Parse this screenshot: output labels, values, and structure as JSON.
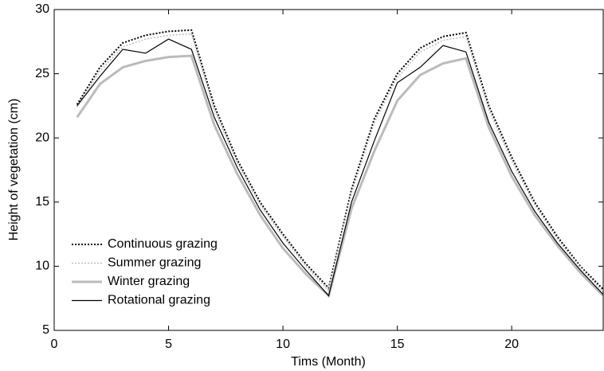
{
  "chart_data": {
    "type": "line",
    "xlabel": "Tims (Month)",
    "ylabel": "Height of vegetation (cm)",
    "x": [
      1,
      2,
      3,
      4,
      5,
      6,
      7,
      8,
      9,
      10,
      11,
      12,
      13,
      14,
      15,
      16,
      17,
      18,
      19,
      20,
      21,
      22,
      23,
      24
    ],
    "series": [
      {
        "name": "Continuous grazing",
        "color": "#000000",
        "style": "dotted",
        "linewidth": 2,
        "values": [
          22.6,
          25.5,
          27.4,
          28.0,
          28.3,
          28.4,
          22.5,
          18.3,
          15.0,
          12.5,
          10.2,
          8.3,
          16.0,
          21.5,
          25.0,
          27.0,
          27.9,
          28.2,
          22.5,
          18.5,
          15.0,
          12.3,
          10.0,
          8.2
        ]
      },
      {
        "name": "Summer grazing",
        "color": "#bbbbbb",
        "style": "dotted",
        "linewidth": 1.5,
        "values": [
          22.4,
          25.2,
          27.1,
          27.7,
          28.0,
          28.1,
          22.2,
          18.1,
          14.8,
          12.3,
          10.0,
          8.1,
          15.7,
          21.2,
          24.7,
          26.7,
          27.6,
          27.9,
          22.2,
          18.2,
          14.8,
          12.1,
          9.9,
          8.0
        ]
      },
      {
        "name": "Winter grazing",
        "color": "#bbbbbb",
        "style": "solid",
        "linewidth": 3,
        "values": [
          21.6,
          24.2,
          25.5,
          26.0,
          26.3,
          26.4,
          21.0,
          17.2,
          14.0,
          11.4,
          9.4,
          7.7,
          14.5,
          19.0,
          22.9,
          24.9,
          25.8,
          26.2,
          20.8,
          17.0,
          14.0,
          11.6,
          9.5,
          7.7
        ]
      },
      {
        "name": "Rotational grazing",
        "color": "#000000",
        "style": "solid",
        "linewidth": 1.2,
        "values": [
          22.5,
          24.8,
          26.9,
          26.6,
          27.7,
          26.9,
          21.6,
          17.7,
          14.4,
          11.8,
          9.7,
          7.7,
          15.0,
          19.8,
          24.3,
          25.5,
          27.2,
          26.7,
          21.2,
          17.4,
          14.3,
          11.8,
          9.7,
          7.8
        ]
      }
    ],
    "xlim": [
      0,
      24
    ],
    "xticks": [
      0,
      5,
      10,
      15,
      20
    ],
    "ylim": [
      5,
      30
    ],
    "yticks": [
      5,
      10,
      15,
      20,
      25,
      30
    ],
    "grid": false,
    "legend": "lower left"
  }
}
